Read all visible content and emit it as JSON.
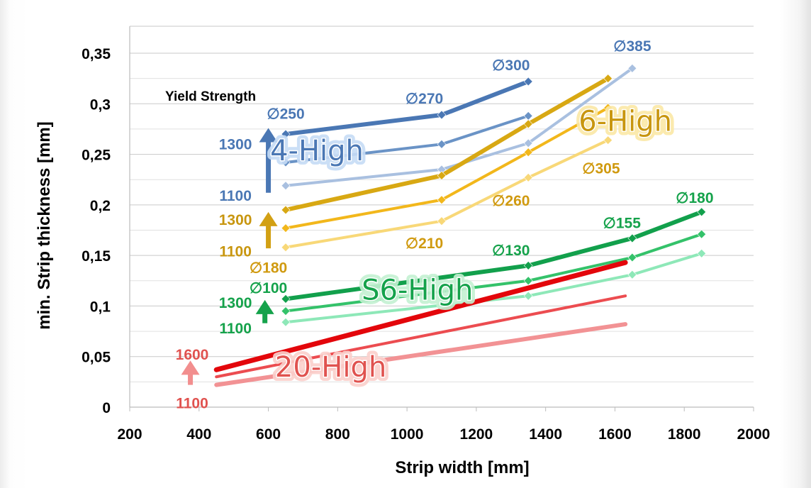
{
  "chart_data": {
    "type": "line",
    "xlabel": "Strip width [mm]",
    "ylabel": "min. Strip thickness [mm]",
    "xlim": [
      200,
      2000
    ],
    "ylim": [
      0,
      0.35
    ],
    "xticks": [
      "200",
      "400",
      "600",
      "800",
      "1000",
      "1200",
      "1400",
      "1600",
      "1800",
      "2000"
    ],
    "yticks": [
      "0",
      "0,05",
      "0,1",
      "0,15",
      "0,2",
      "0,25",
      "0,3",
      "0,35"
    ],
    "grid": "horizontal",
    "legend_title": "Yield Strength",
    "colors": {
      "4-High": [
        "#4a77b4",
        "#6a93c6",
        "#a9c0e0"
      ],
      "6-High": [
        "#d8a813",
        "#f2b71b",
        "#f8d878"
      ],
      "S6-High": [
        "#12a04c",
        "#34c26a",
        "#8ee8b8"
      ],
      "20-High": [
        "#e3060b",
        "#ec4c50",
        "#f29294"
      ],
      "groupText4": "#4a77b4",
      "groupText6": "#c8960f",
      "groupTextS6": "#15a24b",
      "groupText20": "#e0524f"
    },
    "series": [
      {
        "group": "4-High",
        "level": 0,
        "markers": true,
        "points": [
          [
            650,
            0.27
          ],
          [
            1100,
            0.289
          ],
          [
            1350,
            0.322
          ]
        ]
      },
      {
        "group": "4-High",
        "level": 1,
        "markers": true,
        "points": [
          [
            650,
            0.242
          ],
          [
            1100,
            0.26
          ],
          [
            1350,
            0.288
          ]
        ]
      },
      {
        "group": "4-High",
        "level": 2,
        "markers": true,
        "points": [
          [
            650,
            0.219
          ],
          [
            1100,
            0.235
          ],
          [
            1350,
            0.261
          ],
          [
            1650,
            0.335
          ]
        ]
      },
      {
        "group": "6-High",
        "level": 0,
        "markers": true,
        "points": [
          [
            650,
            0.195
          ],
          [
            1100,
            0.229
          ],
          [
            1350,
            0.28
          ],
          [
            1580,
            0.325
          ]
        ]
      },
      {
        "group": "6-High",
        "level": 1,
        "markers": true,
        "points": [
          [
            650,
            0.177
          ],
          [
            1100,
            0.205
          ],
          [
            1350,
            0.252
          ],
          [
            1580,
            0.296
          ]
        ]
      },
      {
        "group": "6-High",
        "level": 2,
        "markers": true,
        "points": [
          [
            650,
            0.158
          ],
          [
            1100,
            0.184
          ],
          [
            1350,
            0.227
          ],
          [
            1580,
            0.264
          ]
        ]
      },
      {
        "group": "S6-High",
        "level": 0,
        "markers": true,
        "points": [
          [
            650,
            0.107
          ],
          [
            1350,
            0.14
          ],
          [
            1650,
            0.167
          ],
          [
            1850,
            0.193
          ]
        ]
      },
      {
        "group": "S6-High",
        "level": 1,
        "markers": true,
        "points": [
          [
            650,
            0.095
          ],
          [
            1350,
            0.125
          ],
          [
            1650,
            0.148
          ],
          [
            1850,
            0.171
          ]
        ]
      },
      {
        "group": "S6-High",
        "level": 2,
        "markers": true,
        "points": [
          [
            650,
            0.084
          ],
          [
            1350,
            0.11
          ],
          [
            1650,
            0.131
          ],
          [
            1850,
            0.152
          ]
        ]
      },
      {
        "group": "20-High",
        "level": 0,
        "markers": false,
        "points": [
          [
            450,
            0.037
          ],
          [
            1630,
            0.143
          ]
        ]
      },
      {
        "group": "20-High",
        "level": 1,
        "markers": false,
        "points": [
          [
            450,
            0.03
          ],
          [
            1630,
            0.11
          ]
        ]
      },
      {
        "group": "20-High",
        "level": 2,
        "markers": false,
        "points": [
          [
            450,
            0.022
          ],
          [
            1630,
            0.082
          ]
        ]
      }
    ],
    "diameter_labels": [
      {
        "text": "∅250",
        "x": 650,
        "y": 0.29,
        "color": "#4a77b4"
      },
      {
        "text": "∅270",
        "x": 1050,
        "y": 0.305,
        "color": "#4a77b4"
      },
      {
        "text": "∅300",
        "x": 1300,
        "y": 0.338,
        "color": "#4a77b4"
      },
      {
        "text": "∅385",
        "x": 1650,
        "y": 0.357,
        "color": "#4a77b4"
      },
      {
        "text": "∅305",
        "x": 1560,
        "y": 0.236,
        "color": "#d09a10"
      },
      {
        "text": "∅260",
        "x": 1300,
        "y": 0.204,
        "color": "#d09a10"
      },
      {
        "text": "∅210",
        "x": 1050,
        "y": 0.162,
        "color": "#d09a10"
      },
      {
        "text": "∅180",
        "x": 600,
        "y": 0.138,
        "color": "#d09a10"
      },
      {
        "text": "∅100",
        "x": 600,
        "y": 0.118,
        "color": "#15a24b"
      },
      {
        "text": "∅130",
        "x": 1300,
        "y": 0.155,
        "color": "#15a24b"
      },
      {
        "text": "∅155",
        "x": 1620,
        "y": 0.182,
        "color": "#15a24b"
      },
      {
        "text": "∅180",
        "x": 1830,
        "y": 0.207,
        "color": "#15a24b"
      }
    ],
    "strength_labels": [
      {
        "text": "1300",
        "x": 505,
        "y": 0.26,
        "color": "#4a77b4"
      },
      {
        "text": "1100",
        "x": 505,
        "y": 0.209,
        "color": "#4a77b4"
      },
      {
        "text": "1300",
        "x": 505,
        "y": 0.185,
        "color": "#c8960f"
      },
      {
        "text": "1100",
        "x": 505,
        "y": 0.154,
        "color": "#c8960f"
      },
      {
        "text": "1300",
        "x": 505,
        "y": 0.103,
        "color": "#15a24b"
      },
      {
        "text": "1100",
        "x": 505,
        "y": 0.078,
        "color": "#15a24b"
      },
      {
        "text": "1600",
        "x": 380,
        "y": 0.052,
        "color": "#e0524f"
      },
      {
        "text": "1100",
        "x": 380,
        "y": 0.004,
        "color": "#e0524f"
      }
    ],
    "group_labels": [
      {
        "text": "4-High",
        "x": 740,
        "y": 0.254,
        "color": "#4a77b4",
        "glow": "#c6dcf6"
      },
      {
        "text": "6-High",
        "x": 1630,
        "y": 0.283,
        "color": "#c8960f",
        "glow": "#fbe8a6"
      },
      {
        "text": "S6-High",
        "x": 1030,
        "y": 0.116,
        "color": "#15a24b",
        "glow": "#c4f1d2"
      },
      {
        "text": "20-High",
        "x": 780,
        "y": 0.04,
        "color": "#e0524f",
        "glow": "#fbd0cc"
      }
    ],
    "arrows": [
      {
        "x": 600,
        "y0": 0.212,
        "y1": 0.276,
        "color": "#4a77b4"
      },
      {
        "x": 600,
        "y0": 0.157,
        "y1": 0.193,
        "color": "#d2a014"
      },
      {
        "x": 590,
        "y0": 0.083,
        "y1": 0.106,
        "color": "#15a24b"
      },
      {
        "x": 375,
        "y0": 0.022,
        "y1": 0.046,
        "color": "#f28e8e"
      }
    ]
  }
}
